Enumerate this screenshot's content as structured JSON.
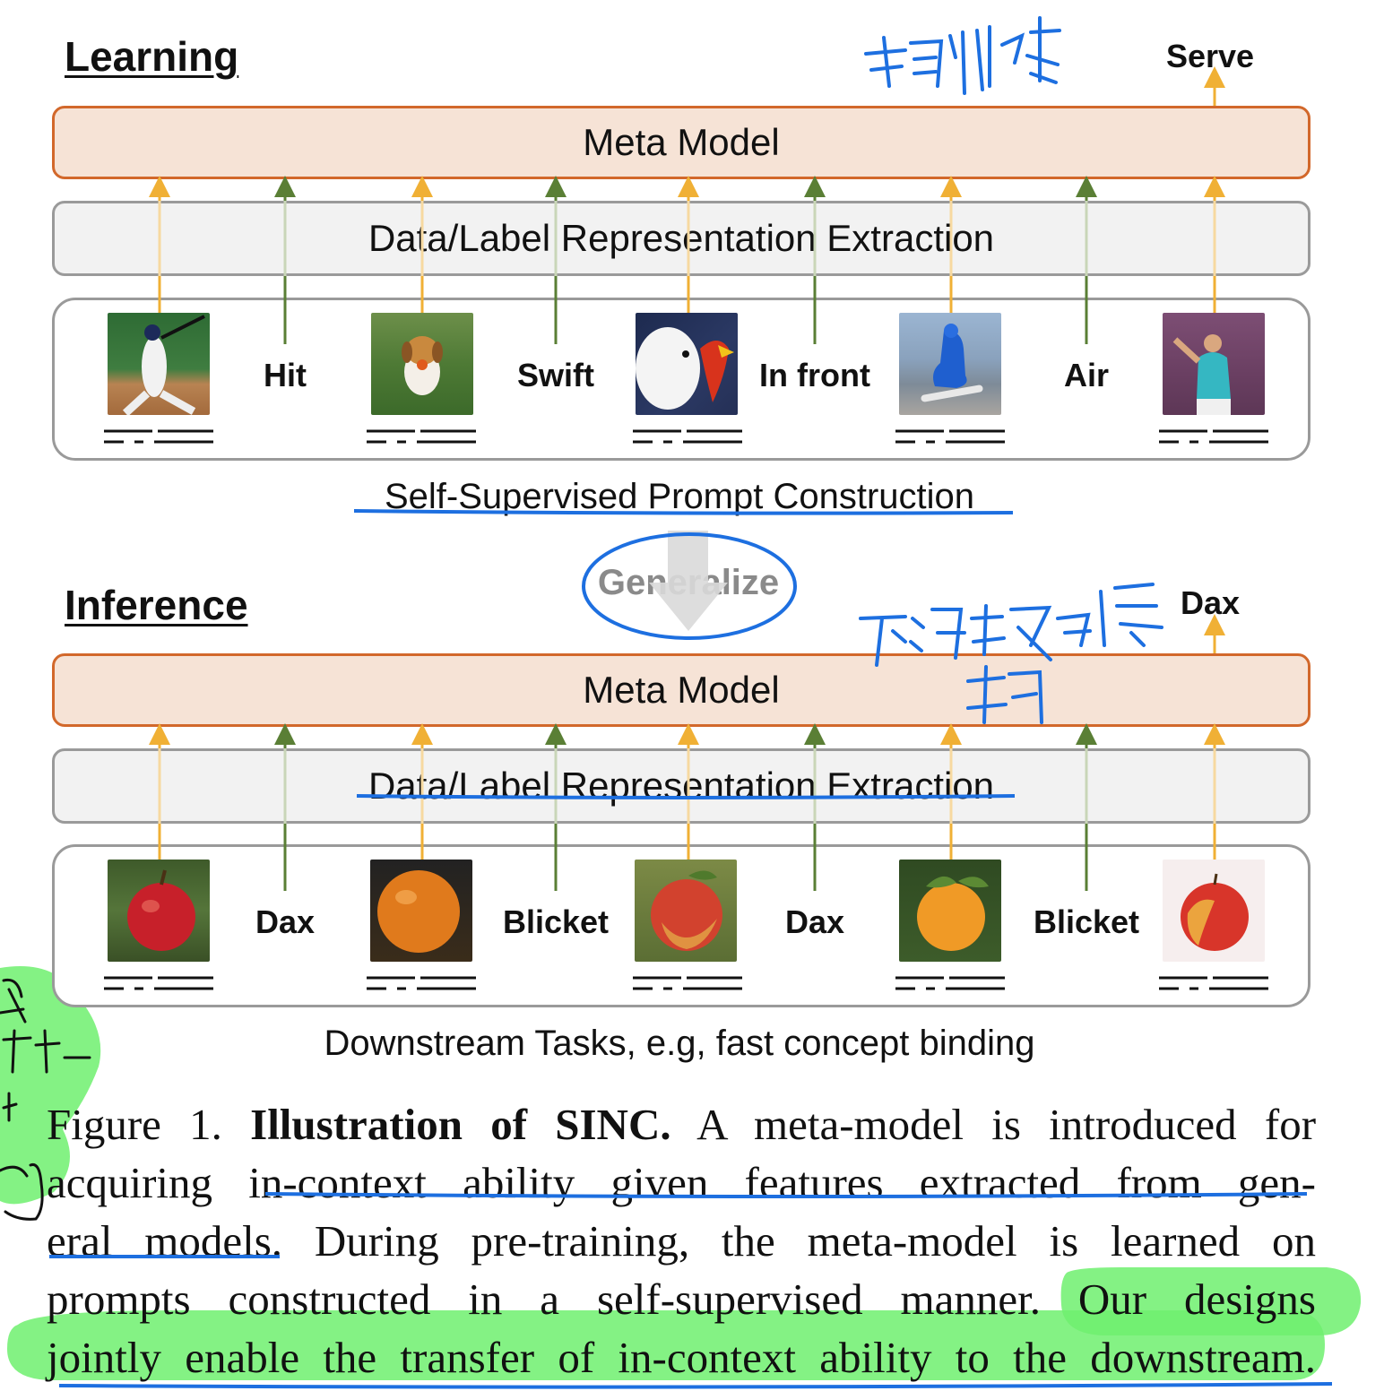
{
  "learning": {
    "title": "Learning",
    "output": "Serve",
    "meta_model": "Meta Model",
    "representation": "Data/Label Representation Extraction",
    "labels": [
      "Hit",
      "Swift",
      "In front",
      "Air"
    ],
    "prompt_caption": "Self-Supervised Prompt Construction"
  },
  "generalize": "Generalize",
  "inference": {
    "title": "Inference",
    "output": "Dax",
    "meta_model": "Meta Model",
    "representation": "Data/Label Representation Extraction",
    "labels": [
      "Dax",
      "Blicket",
      "Dax",
      "Blicket"
    ],
    "downstream_caption": "Downstream Tasks, e.g, fast concept binding"
  },
  "caption": {
    "figure_label": "Figure 1.",
    "title": "Illustration of SINC.",
    "line1_rest": "A meta-model is introduced for",
    "line2": "acquiring in-context ability given features extracted from gen-",
    "line3": "eral models.  During pre-training, the meta-model is learned on",
    "line4": "prompts constructed in a self-supervised manner.  Our designs",
    "line5": "jointly enable the transfer of in-context ability to the downstream."
  },
  "annotations": {
    "handwriting_top": "预训练",
    "handwriting_middle": "下游任务的 标签 学习"
  },
  "colors": {
    "meta_fill": "#f6e3d6",
    "meta_border": "#d2682b",
    "arrow_orange": "#f0b035",
    "arrow_green": "#5a7f35",
    "annotation_blue": "#1d6fe0",
    "highlight_green": "#6ef06e"
  }
}
